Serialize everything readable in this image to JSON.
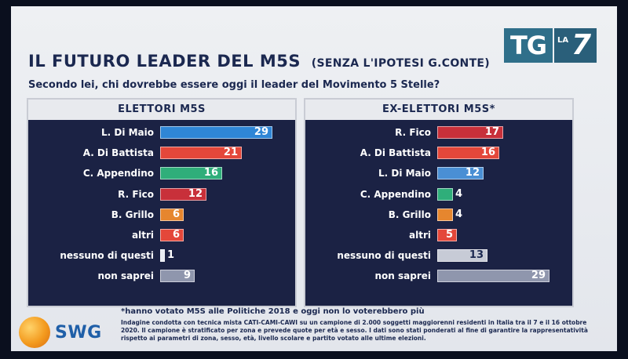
{
  "broadcaster": {
    "tg": "TG",
    "la": "LA",
    "seven": "7"
  },
  "header": {
    "title": "IL FUTURO LEADER DEL M5S",
    "subtitle": "(SENZA L'IPOTESI G.CONTE)",
    "question": "Secondo lei, chi dovrebbe essere oggi il leader del Movimento 5 Stelle?"
  },
  "colors": {
    "blue": "#2f86d6",
    "red": "#c8303a",
    "orange_red": "#e4473a",
    "green": "#2fae7a",
    "orange": "#e6862e",
    "white": "#e9ecf2",
    "gray": "#8f96ad",
    "light_blue": "#4a8fd4",
    "light_gray": "#c7cbd6"
  },
  "chart_data": [
    {
      "type": "bar",
      "title": "ELETTORI M5S",
      "categories": [
        "L. Di Maio",
        "A. Di Battista",
        "C. Appendino",
        "R. Fico",
        "B. Grillo",
        "altri",
        "nessuno di questi",
        "non saprei"
      ],
      "values": [
        29,
        21,
        16,
        12,
        6,
        6,
        1,
        9
      ],
      "bar_colors": [
        "blue",
        "orange_red",
        "green",
        "red",
        "orange",
        "orange_red",
        "white",
        "gray"
      ]
    },
    {
      "type": "bar",
      "title": "EX-ELETTORI M5S*",
      "categories": [
        "R. Fico",
        "A. Di Battista",
        "L. Di Maio",
        "C. Appendino",
        "B. Grillo",
        "altri",
        "nessuno di questi",
        "non saprei"
      ],
      "values": [
        17,
        16,
        12,
        4,
        4,
        5,
        13,
        29
      ],
      "bar_colors": [
        "red",
        "orange_red",
        "light_blue",
        "green",
        "orange",
        "orange_red",
        "light_gray",
        "gray"
      ]
    }
  ],
  "footnote": "*hanno votato M5S alle Politiche 2018 e oggi non lo voterebbero più",
  "source": {
    "logo_text": "SWG",
    "methodology": "Indagine condotta con tecnica mista CATI-CAMI-CAWI su un campione di 2.000 soggetti maggiorenni residenti in Italia tra il 7 e il 16 ottobre 2020. Il campione è stratificato per zona e prevede quote per età e sesso. I dati sono stati ponderati al fine di garantire la rappresentatività rispetto ai parametri di zona, sesso, età, livello scolare e partito votato alle ultime elezioni."
  }
}
